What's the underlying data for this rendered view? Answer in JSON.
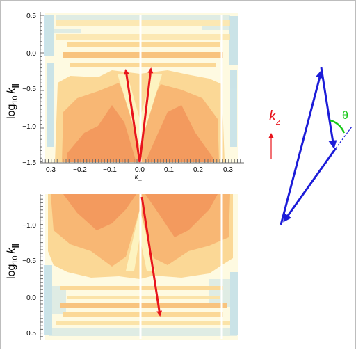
{
  "top_plot": {
    "ylabel": "log",
    "ylabel_sub": "10",
    "ylabel_var": "k",
    "ylabel_var_sub": "||",
    "xlabel_var": "k",
    "xlabel_sub": "⊥",
    "y_ticks": [
      "0.5",
      "0.0",
      "−0.5",
      "−1.0",
      "−1.5"
    ],
    "x_ticks": [
      "0.3",
      "−0.2",
      "−0.1",
      "0.0",
      "0.1",
      "0.2",
      "0.3"
    ]
  },
  "bottom_plot": {
    "ylabel": "log",
    "ylabel_sub": "10",
    "ylabel_var": "k",
    "ylabel_var_sub": "||",
    "y_ticks": [
      "−1.0",
      "−0.5",
      "0.0",
      "0.5"
    ]
  },
  "diagram": {
    "kz_label": "k",
    "kz_sub": "z",
    "theta_label": "θ"
  },
  "colors": {
    "arrow_red": "#e8141c",
    "arrow_blue": "#1c1cd8",
    "theta_green": "#18c818",
    "contour_light": "#fdf6c8",
    "contour_mid": "#fbd896",
    "contour_orange": "#f8b774",
    "contour_deep": "#f39a5e",
    "noise_blue": "#b9dcea"
  }
}
